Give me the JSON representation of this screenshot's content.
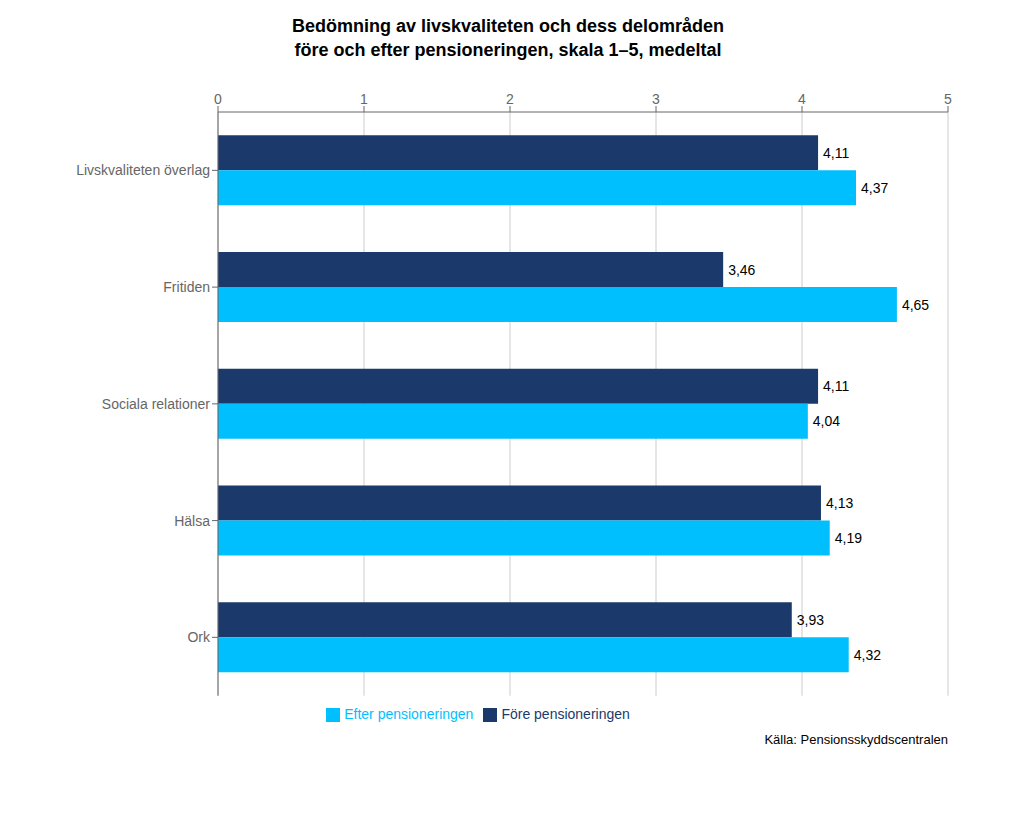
{
  "chart_data": {
    "type": "bar",
    "orientation": "horizontal",
    "title": "Bedömning av livskvaliteten och dess delområden\nföre och efter pensioneringen, skala 1–5, medeltal",
    "categories": [
      "Livskvaliteten överlag",
      "Fritiden",
      "Sociala relationer",
      "Hälsa",
      "Ork"
    ],
    "series": [
      {
        "name": "Före pensioneringen",
        "color": "#1B3A6B",
        "values": [
          4.11,
          3.46,
          4.11,
          4.13,
          3.93
        ],
        "value_labels": [
          "4,11",
          "3,46",
          "4,11",
          "4,13",
          "3,93"
        ]
      },
      {
        "name": "Efter pensioneringen",
        "color": "#00BFFF",
        "values": [
          4.37,
          4.65,
          4.04,
          4.19,
          4.32
        ],
        "value_labels": [
          "4,37",
          "4,65",
          "4,04",
          "4,19",
          "4,32"
        ]
      }
    ],
    "xlim": [
      0,
      5
    ],
    "xticks": [
      0,
      1,
      2,
      3,
      4,
      5
    ],
    "grid": true,
    "legend": "bottom",
    "data_labels": true,
    "annotations": [
      "Källa: Pensionsskyddscentralen"
    ]
  }
}
